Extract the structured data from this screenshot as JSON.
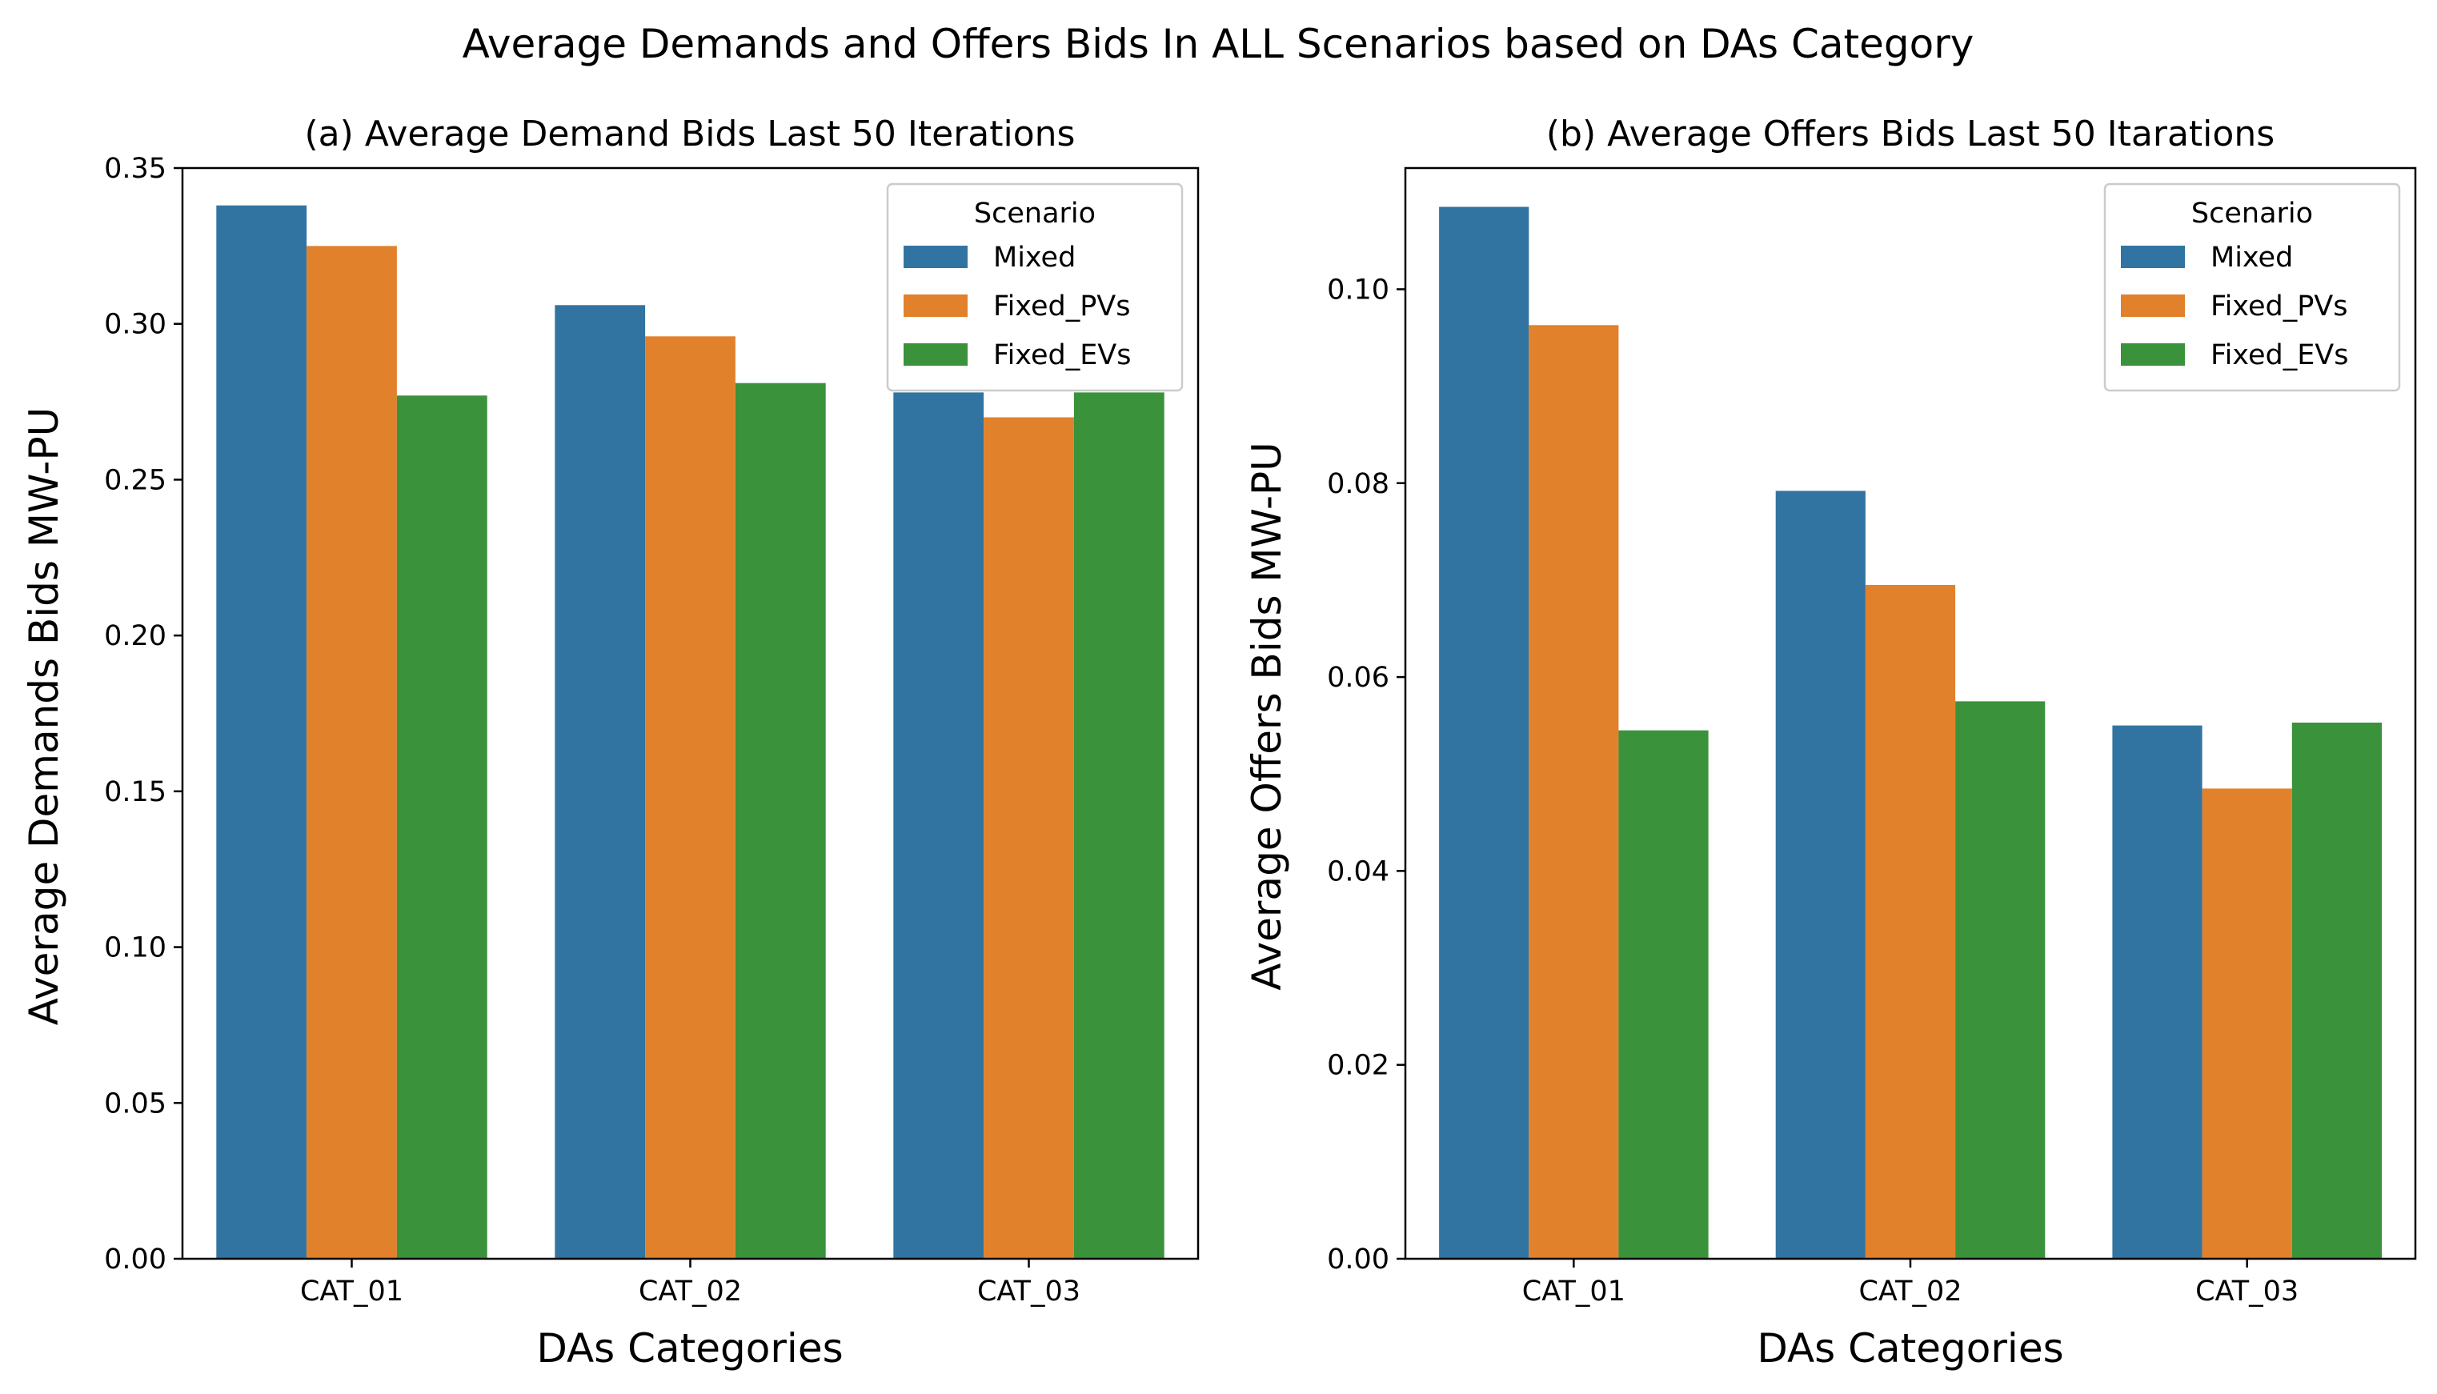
{
  "figure": {
    "suptitle": "Average Demands and Offers Bids In ALL Scenarios based on DAs Category"
  },
  "colors": {
    "Mixed": "#3274a1",
    "Fixed_PVs": "#e1812c",
    "Fixed_EVs": "#3a923a"
  },
  "chart_data": [
    {
      "type": "bar",
      "title": "(a) Average Demand Bids Last 50 Iterations",
      "xlabel": "DAs Categories",
      "ylabel": "Average Demands Bids MW-PU",
      "categories": [
        "CAT_01",
        "CAT_02",
        "CAT_03"
      ],
      "series": [
        {
          "name": "Mixed",
          "values": [
            0.338,
            0.306,
            0.278
          ]
        },
        {
          "name": "Fixed_PVs",
          "values": [
            0.325,
            0.296,
            0.27
          ]
        },
        {
          "name": "Fixed_EVs",
          "values": [
            0.277,
            0.281,
            0.278
          ]
        }
      ],
      "ylim": [
        0,
        0.35
      ],
      "yticks": [
        0.0,
        0.05,
        0.1,
        0.15,
        0.2,
        0.25,
        0.3,
        0.35
      ],
      "ytick_labels": [
        "0.00",
        "0.05",
        "0.10",
        "0.15",
        "0.20",
        "0.25",
        "0.30",
        "0.35"
      ],
      "legend": {
        "title": "Scenario",
        "position": "top-right"
      },
      "grid": false
    },
    {
      "type": "bar",
      "title": "(b) Average Offers Bids Last 50 Itarations",
      "xlabel": "DAs Categories",
      "ylabel": "Average Offers Bids MW-PU",
      "categories": [
        "CAT_01",
        "CAT_02",
        "CAT_03"
      ],
      "series": [
        {
          "name": "Mixed",
          "values": [
            0.1085,
            0.0792,
            0.055
          ]
        },
        {
          "name": "Fixed_PVs",
          "values": [
            0.0963,
            0.0695,
            0.0485
          ]
        },
        {
          "name": "Fixed_EVs",
          "values": [
            0.0545,
            0.0575,
            0.0553
          ]
        }
      ],
      "ylim": [
        0,
        0.1125
      ],
      "yticks": [
        0.0,
        0.02,
        0.04,
        0.06,
        0.08,
        0.1
      ],
      "ytick_labels": [
        "0.00",
        "0.02",
        "0.04",
        "0.06",
        "0.08",
        "0.10"
      ],
      "legend": {
        "title": "Scenario",
        "position": "top-right"
      },
      "grid": false
    }
  ]
}
